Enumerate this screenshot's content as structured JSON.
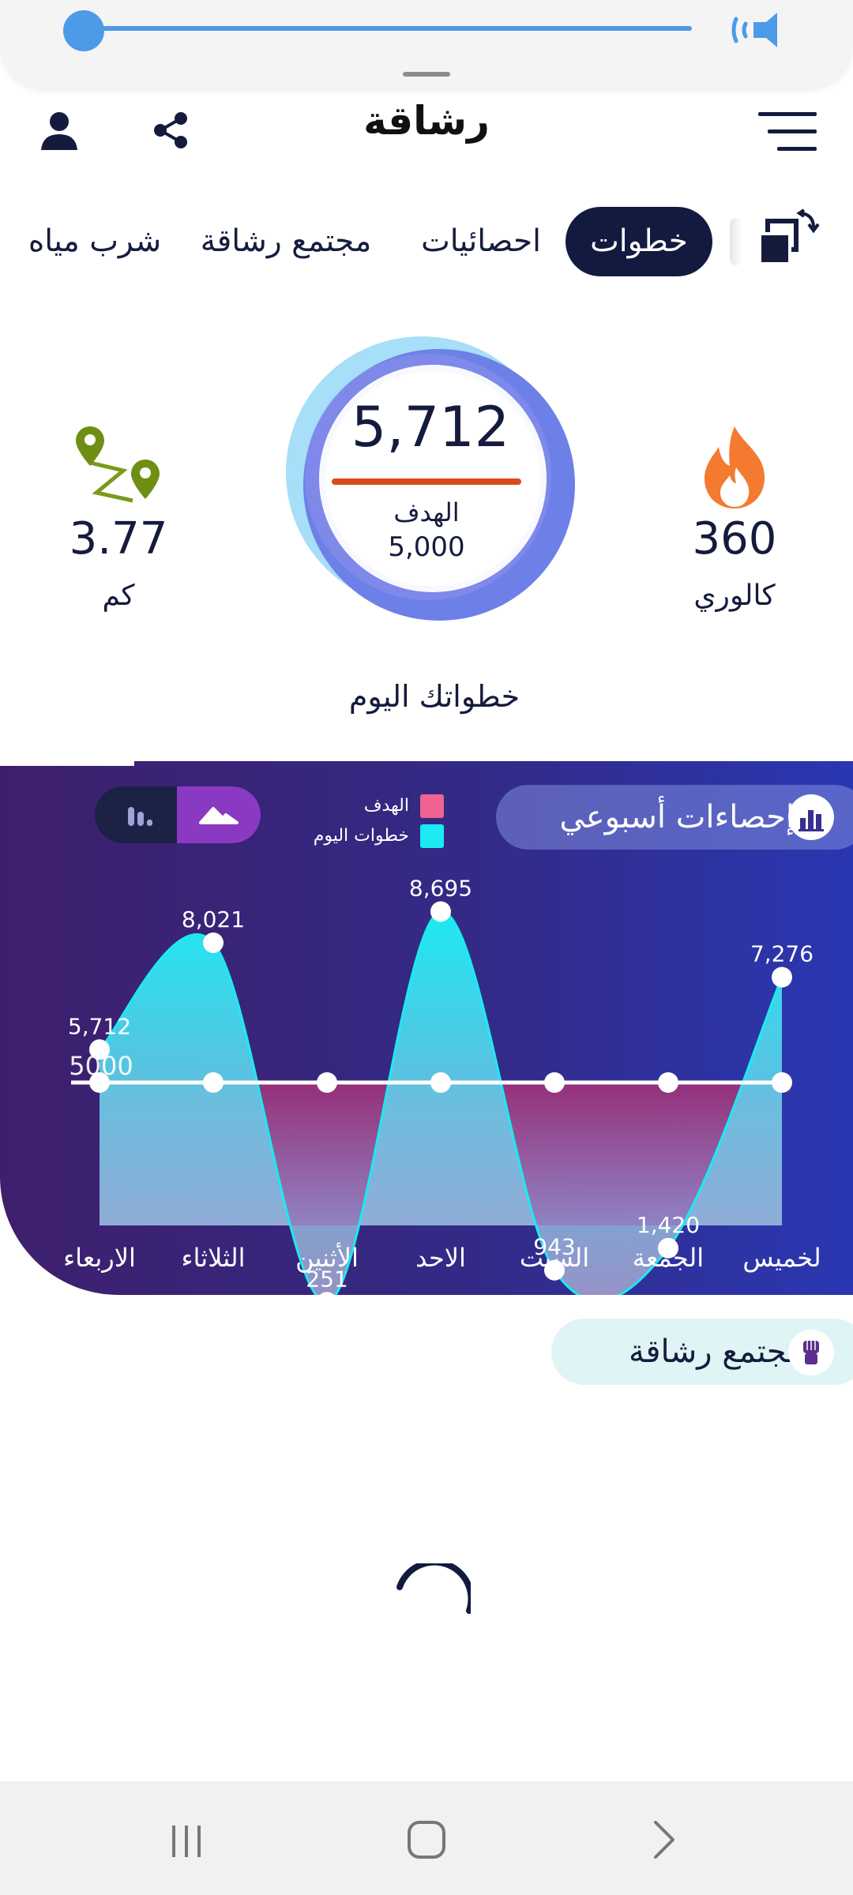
{
  "app": {
    "title": "رشاقة"
  },
  "volume": {
    "level_percent": 0
  },
  "tabs": [
    {
      "label": "خطوات",
      "active": true
    },
    {
      "label": "احصائيات",
      "active": false
    },
    {
      "label": "مجتمع رشاقة",
      "active": false
    },
    {
      "label": "شرب مياه",
      "active": false
    }
  ],
  "dashboard": {
    "calories_value": "360",
    "calories_label": "كالوري",
    "distance_value": "3.77",
    "distance_label": "كم",
    "steps_value": "5,712",
    "goal_label": "الهدف",
    "goal_value": "5,000",
    "caption": "خطواتك اليوم"
  },
  "weekly": {
    "title": "إحصاءات أسبوعي",
    "legend": [
      {
        "label": "الهدف",
        "color": "#f06292"
      },
      {
        "label": "خطوات اليوم",
        "color": "#1de9f2"
      }
    ]
  },
  "chart_data": {
    "type": "area",
    "categories": [
      "الاربعاء",
      "الثلاثاء",
      "الأثنين",
      "الاحد",
      "السبت",
      "الجمعة",
      "لخميس"
    ],
    "series": [
      {
        "name": "خطوات اليوم",
        "values": [
          5712,
          8021,
          251,
          8695,
          943,
          1420,
          7276
        ],
        "labels": [
          "5,712",
          "8,021",
          "251",
          "8,695",
          "943",
          "1,420",
          "7,276"
        ],
        "color": "#1de9f2"
      },
      {
        "name": "الهدف",
        "values": [
          5000,
          5000,
          5000,
          5000,
          5000,
          5000,
          5000
        ],
        "labels": [
          "5000"
        ],
        "color": "#ffffff"
      }
    ],
    "ylim": [
      0,
      10000
    ],
    "grid": false
  },
  "community": {
    "title": "مجتمع رشاقة"
  },
  "colors": {
    "navy": "#121a3f",
    "panel_gradient_start": "#3e1f6c",
    "panel_gradient_end": "#2a37b2",
    "accent_cyan": "#1de9f2",
    "goal_pink": "#f06292",
    "steps_underline": "#d94b1a"
  },
  "icons": {
    "menu": "hamburger-menu-icon",
    "share": "share-icon",
    "user": "user-icon",
    "switch": "swap-window-icon",
    "calories": "flame-icon",
    "distance": "route-pin-icon",
    "weekly": "bar-chart-icon",
    "community": "raised-fist-icon",
    "volume": "speaker-icon"
  }
}
